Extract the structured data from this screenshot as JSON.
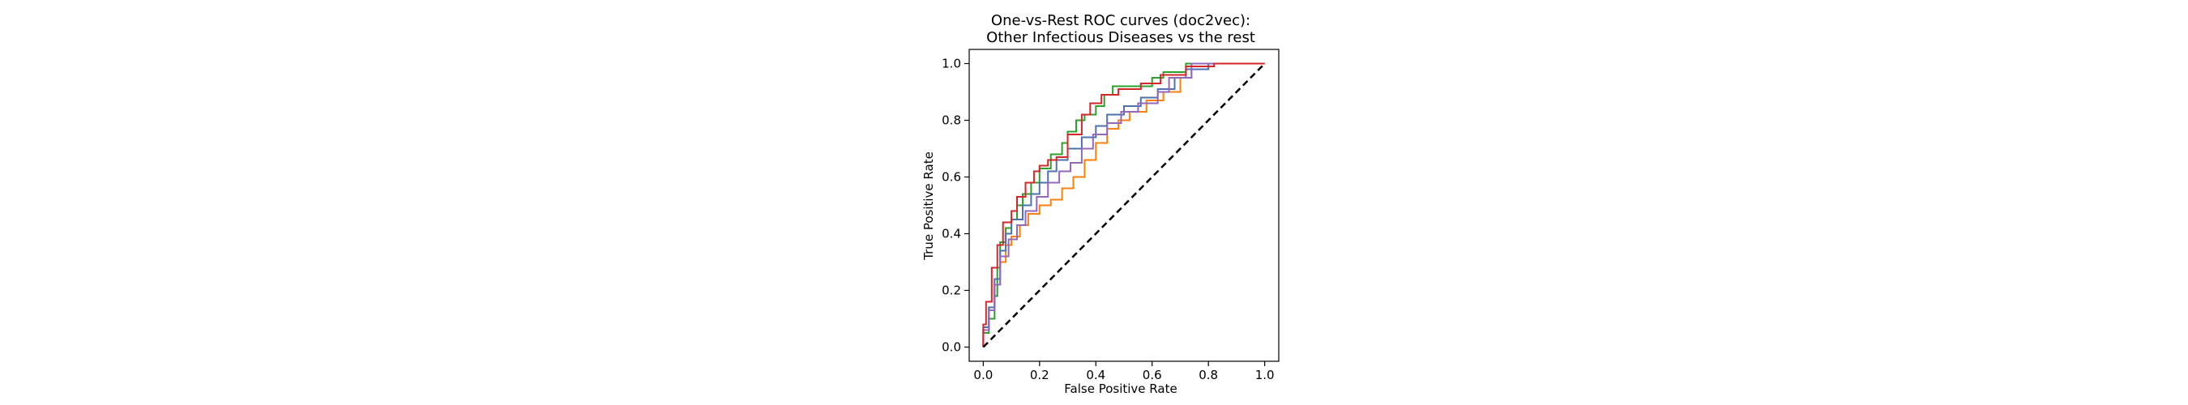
{
  "chart_data": {
    "type": "line",
    "title_lines": [
      "One-vs-Rest ROC curves (doc2vec):",
      "Other Infectious Diseases vs the rest"
    ],
    "xlabel": "False Positive Rate",
    "ylabel": "True Positive Rate",
    "xlim": [
      -0.05,
      1.05
    ],
    "ylim": [
      -0.05,
      1.05
    ],
    "xticks": [
      0.0,
      0.2,
      0.4,
      0.6,
      0.8,
      1.0
    ],
    "yticks": [
      0.0,
      0.2,
      0.4,
      0.6,
      0.8,
      1.0
    ],
    "xtick_labels": [
      "0.0",
      "0.2",
      "0.4",
      "0.6",
      "0.8",
      "1.0"
    ],
    "ytick_labels": [
      "0.0",
      "0.2",
      "0.4",
      "0.6",
      "0.8",
      "1.0"
    ],
    "grid": false,
    "legend": null,
    "chance_line": {
      "x": [
        0,
        1
      ],
      "y": [
        0,
        1
      ],
      "color": "#000000",
      "style": "dashed"
    },
    "series": [
      {
        "color": "#ff7f0e",
        "x": [
          0.0,
          0.0,
          0.02,
          0.02,
          0.04,
          0.04,
          0.06,
          0.06,
          0.08,
          0.08,
          0.1,
          0.1,
          0.13,
          0.13,
          0.16,
          0.16,
          0.2,
          0.2,
          0.24,
          0.24,
          0.28,
          0.28,
          0.32,
          0.32,
          0.36,
          0.36,
          0.4,
          0.4,
          0.44,
          0.44,
          0.48,
          0.48,
          0.52,
          0.52,
          0.58,
          0.58,
          0.64,
          0.64,
          0.7,
          0.7,
          0.74,
          0.74,
          0.8,
          0.8,
          1.0
        ],
        "y": [
          0.0,
          0.06,
          0.06,
          0.14,
          0.14,
          0.22,
          0.22,
          0.3,
          0.3,
          0.36,
          0.36,
          0.39,
          0.39,
          0.43,
          0.43,
          0.47,
          0.47,
          0.5,
          0.5,
          0.52,
          0.52,
          0.56,
          0.56,
          0.6,
          0.6,
          0.66,
          0.66,
          0.72,
          0.72,
          0.77,
          0.77,
          0.8,
          0.8,
          0.83,
          0.83,
          0.87,
          0.87,
          0.9,
          0.9,
          0.95,
          0.95,
          0.98,
          0.98,
          1.0,
          1.0
        ]
      },
      {
        "color": "#2ca02c",
        "x": [
          0.0,
          0.0,
          0.02,
          0.02,
          0.04,
          0.04,
          0.05,
          0.05,
          0.06,
          0.06,
          0.08,
          0.08,
          0.1,
          0.1,
          0.12,
          0.12,
          0.14,
          0.14,
          0.17,
          0.17,
          0.2,
          0.2,
          0.24,
          0.24,
          0.28,
          0.28,
          0.3,
          0.3,
          0.33,
          0.33,
          0.36,
          0.36,
          0.4,
          0.4,
          0.43,
          0.43,
          0.46,
          0.46,
          0.6,
          0.6,
          0.64,
          0.64,
          0.72,
          0.72,
          1.0
        ],
        "y": [
          0.0,
          0.05,
          0.05,
          0.1,
          0.1,
          0.18,
          0.18,
          0.28,
          0.28,
          0.37,
          0.37,
          0.42,
          0.42,
          0.45,
          0.45,
          0.5,
          0.5,
          0.54,
          0.54,
          0.58,
          0.58,
          0.63,
          0.63,
          0.68,
          0.68,
          0.72,
          0.72,
          0.76,
          0.76,
          0.8,
          0.8,
          0.82,
          0.82,
          0.85,
          0.85,
          0.89,
          0.89,
          0.92,
          0.92,
          0.95,
          0.95,
          0.97,
          0.97,
          1.0,
          1.0
        ]
      },
      {
        "color": "#4c72b0",
        "x": [
          0.0,
          0.0,
          0.02,
          0.02,
          0.04,
          0.04,
          0.06,
          0.06,
          0.08,
          0.08,
          0.1,
          0.1,
          0.14,
          0.14,
          0.17,
          0.17,
          0.2,
          0.2,
          0.23,
          0.23,
          0.26,
          0.26,
          0.3,
          0.3,
          0.35,
          0.35,
          0.4,
          0.4,
          0.44,
          0.44,
          0.5,
          0.5,
          0.56,
          0.56,
          0.62,
          0.62,
          0.68,
          0.68,
          0.72,
          0.72,
          0.8,
          0.8,
          1.0
        ],
        "y": [
          0.0,
          0.07,
          0.07,
          0.14,
          0.14,
          0.24,
          0.24,
          0.34,
          0.34,
          0.4,
          0.4,
          0.45,
          0.45,
          0.5,
          0.5,
          0.54,
          0.54,
          0.58,
          0.58,
          0.62,
          0.62,
          0.66,
          0.66,
          0.7,
          0.7,
          0.74,
          0.74,
          0.78,
          0.78,
          0.82,
          0.82,
          0.85,
          0.85,
          0.88,
          0.88,
          0.91,
          0.91,
          0.95,
          0.95,
          0.98,
          0.98,
          1.0,
          1.0
        ]
      },
      {
        "color": "#9467bd",
        "x": [
          0.0,
          0.0,
          0.02,
          0.02,
          0.04,
          0.04,
          0.06,
          0.06,
          0.09,
          0.09,
          0.12,
          0.12,
          0.15,
          0.15,
          0.19,
          0.19,
          0.23,
          0.23,
          0.27,
          0.27,
          0.31,
          0.31,
          0.35,
          0.35,
          0.39,
          0.39,
          0.44,
          0.44,
          0.49,
          0.49,
          0.55,
          0.55,
          0.62,
          0.62,
          0.66,
          0.66,
          0.74,
          0.74,
          1.0
        ],
        "y": [
          0.0,
          0.06,
          0.06,
          0.13,
          0.13,
          0.22,
          0.22,
          0.32,
          0.32,
          0.38,
          0.38,
          0.43,
          0.43,
          0.48,
          0.48,
          0.53,
          0.53,
          0.58,
          0.58,
          0.62,
          0.62,
          0.65,
          0.65,
          0.7,
          0.7,
          0.75,
          0.75,
          0.79,
          0.79,
          0.83,
          0.83,
          0.86,
          0.86,
          0.9,
          0.9,
          0.95,
          0.95,
          1.0,
          1.0
        ]
      },
      {
        "color": "#d62728",
        "x": [
          0.0,
          0.0,
          0.01,
          0.01,
          0.03,
          0.03,
          0.05,
          0.05,
          0.07,
          0.07,
          0.1,
          0.1,
          0.12,
          0.12,
          0.15,
          0.15,
          0.18,
          0.18,
          0.2,
          0.2,
          0.23,
          0.23,
          0.26,
          0.26,
          0.3,
          0.3,
          0.35,
          0.35,
          0.38,
          0.38,
          0.42,
          0.42,
          0.48,
          0.48,
          0.56,
          0.56,
          0.63,
          0.63,
          0.72,
          0.72,
          0.82,
          0.82,
          1.0
        ],
        "y": [
          0.0,
          0.08,
          0.08,
          0.16,
          0.16,
          0.28,
          0.28,
          0.36,
          0.36,
          0.44,
          0.44,
          0.48,
          0.48,
          0.53,
          0.53,
          0.58,
          0.58,
          0.62,
          0.62,
          0.64,
          0.64,
          0.66,
          0.66,
          0.67,
          0.67,
          0.75,
          0.75,
          0.82,
          0.82,
          0.86,
          0.86,
          0.89,
          0.89,
          0.91,
          0.91,
          0.93,
          0.93,
          0.96,
          0.96,
          0.99,
          0.99,
          1.0,
          1.0
        ]
      }
    ]
  }
}
